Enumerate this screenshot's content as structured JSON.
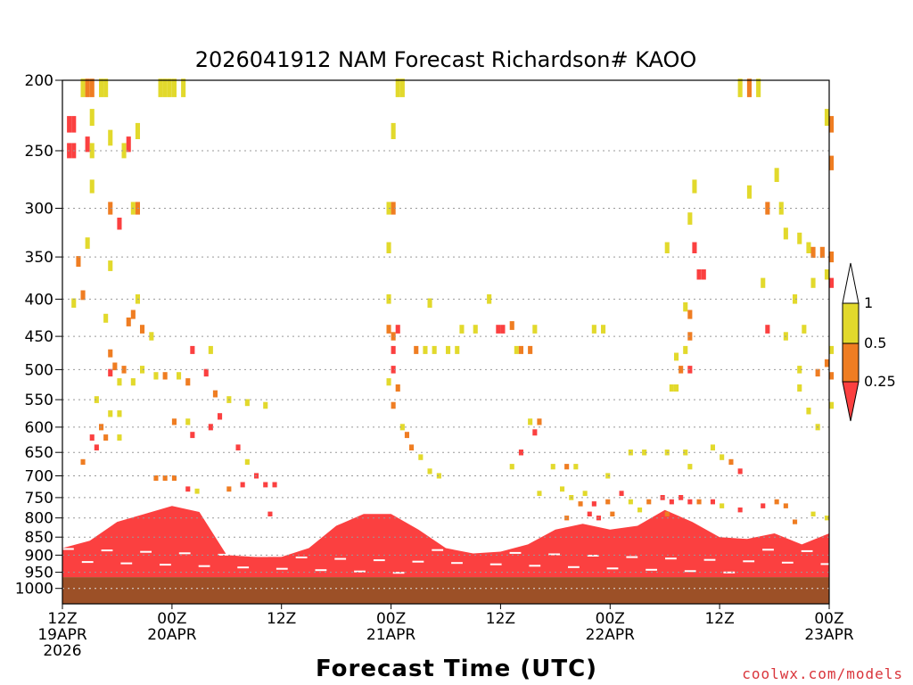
{
  "colors": {
    "ge1": "#ffffff",
    "c05_1": "#e2d92c",
    "c025_05": "#ef7d22",
    "lt025": "#fb4040",
    "ground": "#9c5027",
    "grid": "#999999"
  },
  "chart_data": {
    "type": "heatmap",
    "title": "2026041912 NAM Forecast Richardson# KAOO",
    "xlabel": "Forecast Time (UTC)",
    "ylabel": "",
    "credit": "coolwx.com/models",
    "x_range_hours": [
      0,
      84
    ],
    "y_range_hpa": [
      200,
      1050
    ],
    "y_ticks": [
      200,
      250,
      300,
      350,
      400,
      450,
      500,
      550,
      600,
      650,
      700,
      750,
      800,
      850,
      900,
      950,
      1000
    ],
    "y_tick_labels": [
      "200",
      "250",
      "300",
      "350",
      "400",
      "450",
      "500",
      "550",
      "600",
      "650",
      "700",
      "750",
      "800",
      "850",
      "900",
      "950",
      "1000"
    ],
    "x_ticks": [
      {
        "hour": 0,
        "line1": "12Z",
        "line2": "19APR",
        "line3": "2026"
      },
      {
        "hour": 12,
        "line1": "00Z",
        "line2": "20APR",
        "line3": ""
      },
      {
        "hour": 24,
        "line1": "12Z",
        "line2": "",
        "line3": ""
      },
      {
        "hour": 36,
        "line1": "00Z",
        "line2": "21APR",
        "line3": ""
      },
      {
        "hour": 48,
        "line1": "12Z",
        "line2": "",
        "line3": ""
      },
      {
        "hour": 60,
        "line1": "00Z",
        "line2": "22APR",
        "line3": ""
      },
      {
        "hour": 72,
        "line1": "12Z",
        "line2": "",
        "line3": ""
      },
      {
        "hour": 84,
        "line1": "00Z",
        "line2": "23APR",
        "line3": ""
      }
    ],
    "colorbar": {
      "levels": [
        "1",
        "0.5",
        "0.25"
      ],
      "categories": [
        "≥1",
        "0.5–1",
        "0.25–0.5",
        "<0.25"
      ]
    },
    "ground_pressure_hpa": 965,
    "boundary_layer_top_hpa": [
      [
        0,
        880
      ],
      [
        3,
        860
      ],
      [
        6,
        810
      ],
      [
        9,
        790
      ],
      [
        12,
        770
      ],
      [
        15,
        785
      ],
      [
        18,
        900
      ],
      [
        21,
        905
      ],
      [
        24,
        905
      ],
      [
        27,
        880
      ],
      [
        30,
        820
      ],
      [
        33,
        790
      ],
      [
        36,
        790
      ],
      [
        39,
        830
      ],
      [
        42,
        880
      ],
      [
        45,
        895
      ],
      [
        48,
        890
      ],
      [
        51,
        870
      ],
      [
        54,
        830
      ],
      [
        57,
        815
      ],
      [
        60,
        830
      ],
      [
        63,
        820
      ],
      [
        66,
        780
      ],
      [
        69,
        810
      ],
      [
        72,
        850
      ],
      [
        75,
        855
      ],
      [
        78,
        840
      ],
      [
        81,
        870
      ],
      [
        84,
        840
      ]
    ],
    "cells": [
      {
        "h": 0.5,
        "p": 230,
        "v": "lt025"
      },
      {
        "h": 1.0,
        "p": 230,
        "v": "lt025"
      },
      {
        "h": 0.5,
        "p": 250,
        "v": "lt025"
      },
      {
        "h": 1.0,
        "p": 250,
        "v": "lt025"
      },
      {
        "h": 2.0,
        "p": 205,
        "v": "c05_1"
      },
      {
        "h": 2.5,
        "p": 205,
        "v": "c025_05"
      },
      {
        "h": 3.0,
        "p": 205,
        "v": "c025_05"
      },
      {
        "h": 4.0,
        "p": 205,
        "v": "c05_1"
      },
      {
        "h": 4.5,
        "p": 205,
        "v": "c05_1"
      },
      {
        "h": 3.0,
        "p": 225,
        "v": "c05_1"
      },
      {
        "h": 2.5,
        "p": 245,
        "v": "lt025"
      },
      {
        "h": 3.0,
        "p": 250,
        "v": "c05_1"
      },
      {
        "h": 5.0,
        "p": 240,
        "v": "c05_1"
      },
      {
        "h": 6.5,
        "p": 250,
        "v": "c05_1"
      },
      {
        "h": 7.0,
        "p": 245,
        "v": "lt025"
      },
      {
        "h": 8.0,
        "p": 235,
        "v": "c05_1"
      },
      {
        "h": 10.5,
        "p": 205,
        "v": "c05_1"
      },
      {
        "h": 11.0,
        "p": 205,
        "v": "c05_1"
      },
      {
        "h": 11.5,
        "p": 205,
        "v": "c05_1"
      },
      {
        "h": 12.0,
        "p": 205,
        "v": "c05_1"
      },
      {
        "h": 13.0,
        "p": 205,
        "v": "c05_1"
      },
      {
        "h": 3.0,
        "p": 280,
        "v": "c05_1"
      },
      {
        "h": 5.0,
        "p": 300,
        "v": "c025_05"
      },
      {
        "h": 6.0,
        "p": 315,
        "v": "lt025"
      },
      {
        "h": 7.5,
        "p": 300,
        "v": "c05_1"
      },
      {
        "h": 8.0,
        "p": 300,
        "v": "c025_05"
      },
      {
        "h": 2.5,
        "p": 335,
        "v": "c05_1"
      },
      {
        "h": 1.5,
        "p": 355,
        "v": "c025_05"
      },
      {
        "h": 5.0,
        "p": 360,
        "v": "c05_1"
      },
      {
        "h": 1.0,
        "p": 405,
        "v": "c05_1"
      },
      {
        "h": 2.0,
        "p": 395,
        "v": "c025_05"
      },
      {
        "h": 4.5,
        "p": 425,
        "v": "c05_1"
      },
      {
        "h": 7.0,
        "p": 430,
        "v": "c025_05"
      },
      {
        "h": 7.5,
        "p": 420,
        "v": "c025_05"
      },
      {
        "h": 8.0,
        "p": 400,
        "v": "c05_1"
      },
      {
        "h": 8.5,
        "p": 440,
        "v": "c025_05"
      },
      {
        "h": 9.5,
        "p": 450,
        "v": "c05_1"
      },
      {
        "h": 5.0,
        "p": 475,
        "v": "c025_05"
      },
      {
        "h": 5.5,
        "p": 495,
        "v": "c025_05"
      },
      {
        "h": 5.0,
        "p": 505,
        "v": "lt025"
      },
      {
        "h": 6.0,
        "p": 520,
        "v": "c05_1"
      },
      {
        "h": 6.5,
        "p": 500,
        "v": "c025_05"
      },
      {
        "h": 7.5,
        "p": 520,
        "v": "c05_1"
      },
      {
        "h": 8.5,
        "p": 500,
        "v": "c05_1"
      },
      {
        "h": 10.0,
        "p": 510,
        "v": "c05_1"
      },
      {
        "h": 11.0,
        "p": 510,
        "v": "c025_05"
      },
      {
        "h": 12.5,
        "p": 510,
        "v": "c05_1"
      },
      {
        "h": 13.5,
        "p": 520,
        "v": "c025_05"
      },
      {
        "h": 14.0,
        "p": 470,
        "v": "lt025"
      },
      {
        "h": 16.0,
        "p": 470,
        "v": "c05_1"
      },
      {
        "h": 15.5,
        "p": 505,
        "v": "lt025"
      },
      {
        "h": 16.5,
        "p": 540,
        "v": "c025_05"
      },
      {
        "h": 18.0,
        "p": 550,
        "v": "c05_1"
      },
      {
        "h": 20.0,
        "p": 555,
        "v": "c05_1"
      },
      {
        "h": 22.0,
        "p": 560,
        "v": "c05_1"
      },
      {
        "h": 3.5,
        "p": 550,
        "v": "c05_1"
      },
      {
        "h": 5.0,
        "p": 575,
        "v": "c05_1"
      },
      {
        "h": 6.0,
        "p": 575,
        "v": "c05_1"
      },
      {
        "h": 3.0,
        "p": 620,
        "v": "lt025"
      },
      {
        "h": 3.5,
        "p": 640,
        "v": "lt025"
      },
      {
        "h": 4.0,
        "p": 600,
        "v": "c025_05"
      },
      {
        "h": 4.5,
        "p": 620,
        "v": "c025_05"
      },
      {
        "h": 6.0,
        "p": 620,
        "v": "c05_1"
      },
      {
        "h": 2.0,
        "p": 670,
        "v": "c025_05"
      },
      {
        "h": 12.0,
        "p": 590,
        "v": "c025_05"
      },
      {
        "h": 13.5,
        "p": 590,
        "v": "c05_1"
      },
      {
        "h": 14.0,
        "p": 615,
        "v": "lt025"
      },
      {
        "h": 16.0,
        "p": 600,
        "v": "lt025"
      },
      {
        "h": 17.0,
        "p": 580,
        "v": "lt025"
      },
      {
        "h": 19.0,
        "p": 640,
        "v": "lt025"
      },
      {
        "h": 20.0,
        "p": 670,
        "v": "c05_1"
      },
      {
        "h": 21.0,
        "p": 700,
        "v": "lt025"
      },
      {
        "h": 22.0,
        "p": 720,
        "v": "lt025"
      },
      {
        "h": 23.0,
        "p": 720,
        "v": "lt025"
      },
      {
        "h": 19.5,
        "p": 720,
        "v": "lt025"
      },
      {
        "h": 18.0,
        "p": 730,
        "v": "c025_05"
      },
      {
        "h": 10.0,
        "p": 705,
        "v": "c025_05"
      },
      {
        "h": 11.0,
        "p": 705,
        "v": "c025_05"
      },
      {
        "h": 12.0,
        "p": 705,
        "v": "c025_05"
      },
      {
        "h": 13.5,
        "p": 730,
        "v": "lt025"
      },
      {
        "h": 14.5,
        "p": 735,
        "v": "c05_1"
      },
      {
        "h": 22.5,
        "p": 790,
        "v": "lt025"
      },
      {
        "h": 35.5,
        "p": 300,
        "v": "c05_1"
      },
      {
        "h": 36.0,
        "p": 300,
        "v": "c025_05"
      },
      {
        "h": 35.5,
        "p": 340,
        "v": "c05_1"
      },
      {
        "h": 36.5,
        "p": 205,
        "v": "c05_1"
      },
      {
        "h": 37.0,
        "p": 205,
        "v": "c05_1"
      },
      {
        "h": 36.0,
        "p": 235,
        "v": "c05_1"
      },
      {
        "h": 35.5,
        "p": 400,
        "v": "c05_1"
      },
      {
        "h": 35.5,
        "p": 440,
        "v": "c025_05"
      },
      {
        "h": 36.0,
        "p": 450,
        "v": "c025_05"
      },
      {
        "h": 36.0,
        "p": 470,
        "v": "lt025"
      },
      {
        "h": 36.5,
        "p": 440,
        "v": "lt025"
      },
      {
        "h": 36.0,
        "p": 500,
        "v": "lt025"
      },
      {
        "h": 36.5,
        "p": 530,
        "v": "c025_05"
      },
      {
        "h": 35.5,
        "p": 520,
        "v": "c05_1"
      },
      {
        "h": 36.0,
        "p": 560,
        "v": "c025_05"
      },
      {
        "h": 37.0,
        "p": 600,
        "v": "c05_1"
      },
      {
        "h": 37.5,
        "p": 615,
        "v": "c025_05"
      },
      {
        "h": 38.0,
        "p": 640,
        "v": "c025_05"
      },
      {
        "h": 39.0,
        "p": 660,
        "v": "c05_1"
      },
      {
        "h": 40.0,
        "p": 690,
        "v": "c05_1"
      },
      {
        "h": 41.0,
        "p": 700,
        "v": "c05_1"
      },
      {
        "h": 38.5,
        "p": 470,
        "v": "c025_05"
      },
      {
        "h": 39.5,
        "p": 470,
        "v": "c05_1"
      },
      {
        "h": 40.5,
        "p": 470,
        "v": "c05_1"
      },
      {
        "h": 42.0,
        "p": 470,
        "v": "c05_1"
      },
      {
        "h": 43.0,
        "p": 470,
        "v": "c05_1"
      },
      {
        "h": 40.0,
        "p": 405,
        "v": "c05_1"
      },
      {
        "h": 43.5,
        "p": 440,
        "v": "c05_1"
      },
      {
        "h": 46.5,
        "p": 400,
        "v": "c05_1"
      },
      {
        "h": 45.0,
        "p": 440,
        "v": "c05_1"
      },
      {
        "h": 47.5,
        "p": 440,
        "v": "lt025"
      },
      {
        "h": 48.0,
        "p": 440,
        "v": "lt025"
      },
      {
        "h": 49.0,
        "p": 435,
        "v": "c025_05"
      },
      {
        "h": 49.5,
        "p": 470,
        "v": "c05_1"
      },
      {
        "h": 50.0,
        "p": 470,
        "v": "c025_05"
      },
      {
        "h": 51.0,
        "p": 470,
        "v": "c025_05"
      },
      {
        "h": 51.5,
        "p": 440,
        "v": "c05_1"
      },
      {
        "h": 51.0,
        "p": 590,
        "v": "c05_1"
      },
      {
        "h": 52.0,
        "p": 590,
        "v": "c025_05"
      },
      {
        "h": 51.5,
        "p": 610,
        "v": "lt025"
      },
      {
        "h": 50.0,
        "p": 650,
        "v": "lt025"
      },
      {
        "h": 49.0,
        "p": 680,
        "v": "c05_1"
      },
      {
        "h": 53.5,
        "p": 680,
        "v": "c05_1"
      },
      {
        "h": 55.0,
        "p": 680,
        "v": "c025_05"
      },
      {
        "h": 56.0,
        "p": 680,
        "v": "c05_1"
      },
      {
        "h": 52.0,
        "p": 740,
        "v": "c05_1"
      },
      {
        "h": 54.5,
        "p": 730,
        "v": "c05_1"
      },
      {
        "h": 55.5,
        "p": 750,
        "v": "c05_1"
      },
      {
        "h": 57.0,
        "p": 740,
        "v": "c05_1"
      },
      {
        "h": 56.5,
        "p": 765,
        "v": "c025_05"
      },
      {
        "h": 58.0,
        "p": 765,
        "v": "lt025"
      },
      {
        "h": 59.5,
        "p": 760,
        "v": "c025_05"
      },
      {
        "h": 60.0,
        "p": 790,
        "v": "c025_05"
      },
      {
        "h": 58.5,
        "p": 800,
        "v": "lt025"
      },
      {
        "h": 57.5,
        "p": 790,
        "v": "lt025"
      },
      {
        "h": 55.0,
        "p": 800,
        "v": "c025_05"
      },
      {
        "h": 59.5,
        "p": 700,
        "v": "c05_1"
      },
      {
        "h": 58.0,
        "p": 440,
        "v": "c05_1"
      },
      {
        "h": 59.0,
        "p": 440,
        "v": "c05_1"
      },
      {
        "h": 69.0,
        "p": 280,
        "v": "c05_1"
      },
      {
        "h": 75.0,
        "p": 285,
        "v": "c05_1"
      },
      {
        "h": 68.5,
        "p": 310,
        "v": "c05_1"
      },
      {
        "h": 69.0,
        "p": 340,
        "v": "lt025"
      },
      {
        "h": 69.5,
        "p": 370,
        "v": "lt025"
      },
      {
        "h": 70.0,
        "p": 370,
        "v": "lt025"
      },
      {
        "h": 68.0,
        "p": 410,
        "v": "c05_1"
      },
      {
        "h": 68.5,
        "p": 420,
        "v": "c025_05"
      },
      {
        "h": 68.5,
        "p": 450,
        "v": "c025_05"
      },
      {
        "h": 67.0,
        "p": 480,
        "v": "c05_1"
      },
      {
        "h": 68.0,
        "p": 470,
        "v": "c05_1"
      },
      {
        "h": 68.5,
        "p": 500,
        "v": "lt025"
      },
      {
        "h": 67.5,
        "p": 500,
        "v": "c025_05"
      },
      {
        "h": 66.5,
        "p": 530,
        "v": "c05_1"
      },
      {
        "h": 67.0,
        "p": 530,
        "v": "c05_1"
      },
      {
        "h": 66.0,
        "p": 340,
        "v": "c05_1"
      },
      {
        "h": 74.0,
        "p": 205,
        "v": "c05_1"
      },
      {
        "h": 75.0,
        "p": 205,
        "v": "c025_05"
      },
      {
        "h": 76.0,
        "p": 205,
        "v": "c05_1"
      },
      {
        "h": 78.0,
        "p": 270,
        "v": "c05_1"
      },
      {
        "h": 77.0,
        "p": 300,
        "v": "c025_05"
      },
      {
        "h": 78.5,
        "p": 300,
        "v": "c05_1"
      },
      {
        "h": 79.0,
        "p": 325,
        "v": "c05_1"
      },
      {
        "h": 80.5,
        "p": 330,
        "v": "c05_1"
      },
      {
        "h": 81.5,
        "p": 340,
        "v": "c05_1"
      },
      {
        "h": 82.0,
        "p": 345,
        "v": "c025_05"
      },
      {
        "h": 83.0,
        "p": 345,
        "v": "c025_05"
      },
      {
        "h": 84.0,
        "p": 350,
        "v": "c025_05"
      },
      {
        "h": 83.5,
        "p": 370,
        "v": "c05_1"
      },
      {
        "h": 84.0,
        "p": 380,
        "v": "lt025"
      },
      {
        "h": 82.0,
        "p": 380,
        "v": "c05_1"
      },
      {
        "h": 84.0,
        "p": 230,
        "v": "c025_05"
      },
      {
        "h": 84.0,
        "p": 260,
        "v": "c025_05"
      },
      {
        "h": 83.5,
        "p": 225,
        "v": "c05_1"
      },
      {
        "h": 76.5,
        "p": 380,
        "v": "c05_1"
      },
      {
        "h": 77.0,
        "p": 440,
        "v": "lt025"
      },
      {
        "h": 79.0,
        "p": 450,
        "v": "c05_1"
      },
      {
        "h": 81.0,
        "p": 440,
        "v": "c05_1"
      },
      {
        "h": 80.0,
        "p": 400,
        "v": "c05_1"
      },
      {
        "h": 83.5,
        "p": 490,
        "v": "c025_05"
      },
      {
        "h": 84.0,
        "p": 510,
        "v": "c025_05"
      },
      {
        "h": 82.5,
        "p": 505,
        "v": "c025_05"
      },
      {
        "h": 80.5,
        "p": 500,
        "v": "c05_1"
      },
      {
        "h": 80.5,
        "p": 530,
        "v": "c05_1"
      },
      {
        "h": 81.5,
        "p": 570,
        "v": "c05_1"
      },
      {
        "h": 82.5,
        "p": 600,
        "v": "c05_1"
      },
      {
        "h": 84.0,
        "p": 560,
        "v": "c05_1"
      },
      {
        "h": 84.0,
        "p": 470,
        "v": "c05_1"
      },
      {
        "h": 82.0,
        "p": 790,
        "v": "c05_1"
      },
      {
        "h": 80.0,
        "p": 810,
        "v": "c025_05"
      },
      {
        "h": 79.0,
        "p": 770,
        "v": "c025_05"
      },
      {
        "h": 83.5,
        "p": 800,
        "v": "c05_1"
      },
      {
        "h": 62.0,
        "p": 650,
        "v": "c05_1"
      },
      {
        "h": 63.5,
        "p": 650,
        "v": "c05_1"
      },
      {
        "h": 66.0,
        "p": 650,
        "v": "c05_1"
      },
      {
        "h": 68.0,
        "p": 650,
        "v": "c05_1"
      },
      {
        "h": 71.0,
        "p": 640,
        "v": "c05_1"
      },
      {
        "h": 72.0,
        "p": 660,
        "v": "c05_1"
      },
      {
        "h": 73.0,
        "p": 670,
        "v": "c025_05"
      },
      {
        "h": 74.0,
        "p": 690,
        "v": "lt025"
      },
      {
        "h": 68.5,
        "p": 680,
        "v": "c05_1"
      },
      {
        "h": 64.0,
        "p": 760,
        "v": "c025_05"
      },
      {
        "h": 65.5,
        "p": 750,
        "v": "lt025"
      },
      {
        "h": 66.5,
        "p": 760,
        "v": "lt025"
      },
      {
        "h": 67.5,
        "p": 750,
        "v": "lt025"
      },
      {
        "h": 68.5,
        "p": 760,
        "v": "lt025"
      },
      {
        "h": 69.5,
        "p": 760,
        "v": "c025_05"
      },
      {
        "h": 71.0,
        "p": 760,
        "v": "lt025"
      },
      {
        "h": 72.0,
        "p": 770,
        "v": "c05_1"
      },
      {
        "h": 74.0,
        "p": 780,
        "v": "lt025"
      },
      {
        "h": 76.5,
        "p": 770,
        "v": "lt025"
      },
      {
        "h": 78.0,
        "p": 760,
        "v": "c025_05"
      },
      {
        "h": 61.0,
        "p": 740,
        "v": "lt025"
      },
      {
        "h": 62.0,
        "p": 760,
        "v": "c05_1"
      },
      {
        "h": 63.0,
        "p": 780,
        "v": "c05_1"
      },
      {
        "h": 66.0,
        "p": 790,
        "v": "c025_05"
      }
    ]
  }
}
